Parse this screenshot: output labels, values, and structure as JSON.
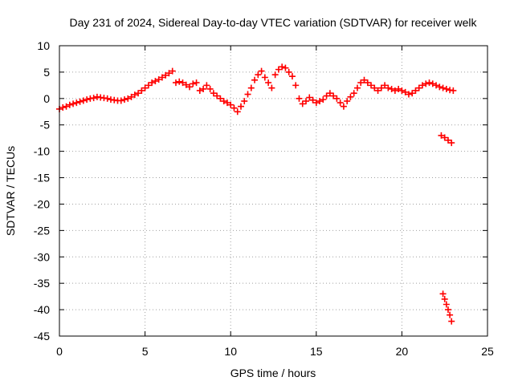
{
  "chart_data": {
    "type": "scatter",
    "title": "Day 231 of 2024, Sidereal Day-to-day VTEC variation (SDTVAR) for receiver welk",
    "xlabel": "GPS time / hours",
    "ylabel": "SDTVAR / TECUs",
    "xlim": [
      0,
      25
    ],
    "ylim": [
      -45,
      10
    ],
    "xticks": [
      0,
      5,
      10,
      15,
      20,
      25
    ],
    "yticks": [
      10,
      5,
      0,
      -5,
      -10,
      -15,
      -20,
      -25,
      -30,
      -35,
      -40,
      -45
    ],
    "grid": true,
    "marker": "+",
    "marker_color": "#ff0000",
    "series": [
      {
        "name": "welk",
        "points": [
          [
            0.0,
            -2.0
          ],
          [
            0.2,
            -1.7
          ],
          [
            0.4,
            -1.5
          ],
          [
            0.6,
            -1.2
          ],
          [
            0.8,
            -1.0
          ],
          [
            1.0,
            -0.8
          ],
          [
            1.2,
            -0.6
          ],
          [
            1.4,
            -0.4
          ],
          [
            1.6,
            -0.2
          ],
          [
            1.8,
            0.0
          ],
          [
            2.0,
            0.1
          ],
          [
            2.2,
            0.3
          ],
          [
            2.4,
            0.2
          ],
          [
            2.6,
            0.1
          ],
          [
            2.8,
            0.0
          ],
          [
            3.0,
            -0.2
          ],
          [
            3.2,
            -0.3
          ],
          [
            3.4,
            -0.4
          ],
          [
            3.6,
            -0.4
          ],
          [
            3.8,
            -0.2
          ],
          [
            4.0,
            0.0
          ],
          [
            4.2,
            0.3
          ],
          [
            4.4,
            0.7
          ],
          [
            4.6,
            1.0
          ],
          [
            4.8,
            1.5
          ],
          [
            5.0,
            2.0
          ],
          [
            5.2,
            2.5
          ],
          [
            5.4,
            3.0
          ],
          [
            5.6,
            3.3
          ],
          [
            5.8,
            3.6
          ],
          [
            6.0,
            4.0
          ],
          [
            6.2,
            4.4
          ],
          [
            6.4,
            4.8
          ],
          [
            6.6,
            5.2
          ],
          [
            6.8,
            3.0
          ],
          [
            7.0,
            3.2
          ],
          [
            7.2,
            3.0
          ],
          [
            7.4,
            2.6
          ],
          [
            7.6,
            2.2
          ],
          [
            7.8,
            2.8
          ],
          [
            8.0,
            3.0
          ],
          [
            8.2,
            1.5
          ],
          [
            8.4,
            1.8
          ],
          [
            8.6,
            2.5
          ],
          [
            8.8,
            1.8
          ],
          [
            9.0,
            1.0
          ],
          [
            9.2,
            0.5
          ],
          [
            9.4,
            0.0
          ],
          [
            9.6,
            -0.5
          ],
          [
            9.8,
            -0.8
          ],
          [
            10.0,
            -1.2
          ],
          [
            10.2,
            -1.8
          ],
          [
            10.4,
            -2.5
          ],
          [
            10.6,
            -1.5
          ],
          [
            10.8,
            -0.5
          ],
          [
            11.0,
            0.8
          ],
          [
            11.2,
            2.0
          ],
          [
            11.4,
            3.5
          ],
          [
            11.6,
            4.5
          ],
          [
            11.8,
            5.2
          ],
          [
            12.0,
            4.0
          ],
          [
            12.2,
            3.0
          ],
          [
            12.4,
            2.0
          ],
          [
            12.6,
            4.5
          ],
          [
            12.8,
            5.5
          ],
          [
            13.0,
            6.0
          ],
          [
            13.2,
            5.8
          ],
          [
            13.4,
            5.0
          ],
          [
            13.6,
            4.2
          ],
          [
            13.8,
            2.5
          ],
          [
            14.0,
            0.0
          ],
          [
            14.2,
            -1.0
          ],
          [
            14.4,
            -0.5
          ],
          [
            14.6,
            0.2
          ],
          [
            14.8,
            -0.3
          ],
          [
            15.0,
            -0.8
          ],
          [
            15.2,
            -0.5
          ],
          [
            15.4,
            -0.2
          ],
          [
            15.6,
            0.5
          ],
          [
            15.8,
            1.0
          ],
          [
            16.0,
            0.5
          ],
          [
            16.2,
            0.0
          ],
          [
            16.4,
            -0.8
          ],
          [
            16.6,
            -1.5
          ],
          [
            16.8,
            -0.5
          ],
          [
            17.0,
            0.3
          ],
          [
            17.2,
            1.0
          ],
          [
            17.4,
            2.0
          ],
          [
            17.6,
            3.0
          ],
          [
            17.8,
            3.5
          ],
          [
            18.0,
            3.0
          ],
          [
            18.2,
            2.5
          ],
          [
            18.4,
            2.0
          ],
          [
            18.6,
            1.5
          ],
          [
            18.8,
            2.0
          ],
          [
            19.0,
            2.5
          ],
          [
            19.2,
            2.0
          ],
          [
            19.4,
            1.8
          ],
          [
            19.6,
            1.5
          ],
          [
            19.8,
            1.8
          ],
          [
            20.0,
            1.5
          ],
          [
            20.2,
            1.2
          ],
          [
            20.4,
            0.8
          ],
          [
            20.6,
            1.0
          ],
          [
            20.8,
            1.5
          ],
          [
            21.0,
            2.0
          ],
          [
            21.2,
            2.5
          ],
          [
            21.4,
            2.8
          ],
          [
            21.6,
            3.0
          ],
          [
            21.8,
            2.8
          ],
          [
            22.0,
            2.5
          ],
          [
            22.2,
            2.2
          ],
          [
            22.4,
            2.0
          ],
          [
            22.6,
            1.8
          ],
          [
            22.8,
            1.6
          ],
          [
            23.0,
            1.5
          ],
          [
            22.3,
            -7.0
          ],
          [
            22.5,
            -7.4
          ],
          [
            22.7,
            -7.9
          ],
          [
            22.9,
            -8.4
          ],
          [
            22.4,
            -37.0
          ],
          [
            22.5,
            -38.0
          ],
          [
            22.6,
            -39.0
          ],
          [
            22.7,
            -40.0
          ],
          [
            22.8,
            -41.0
          ],
          [
            22.9,
            -42.2
          ]
        ]
      }
    ]
  }
}
